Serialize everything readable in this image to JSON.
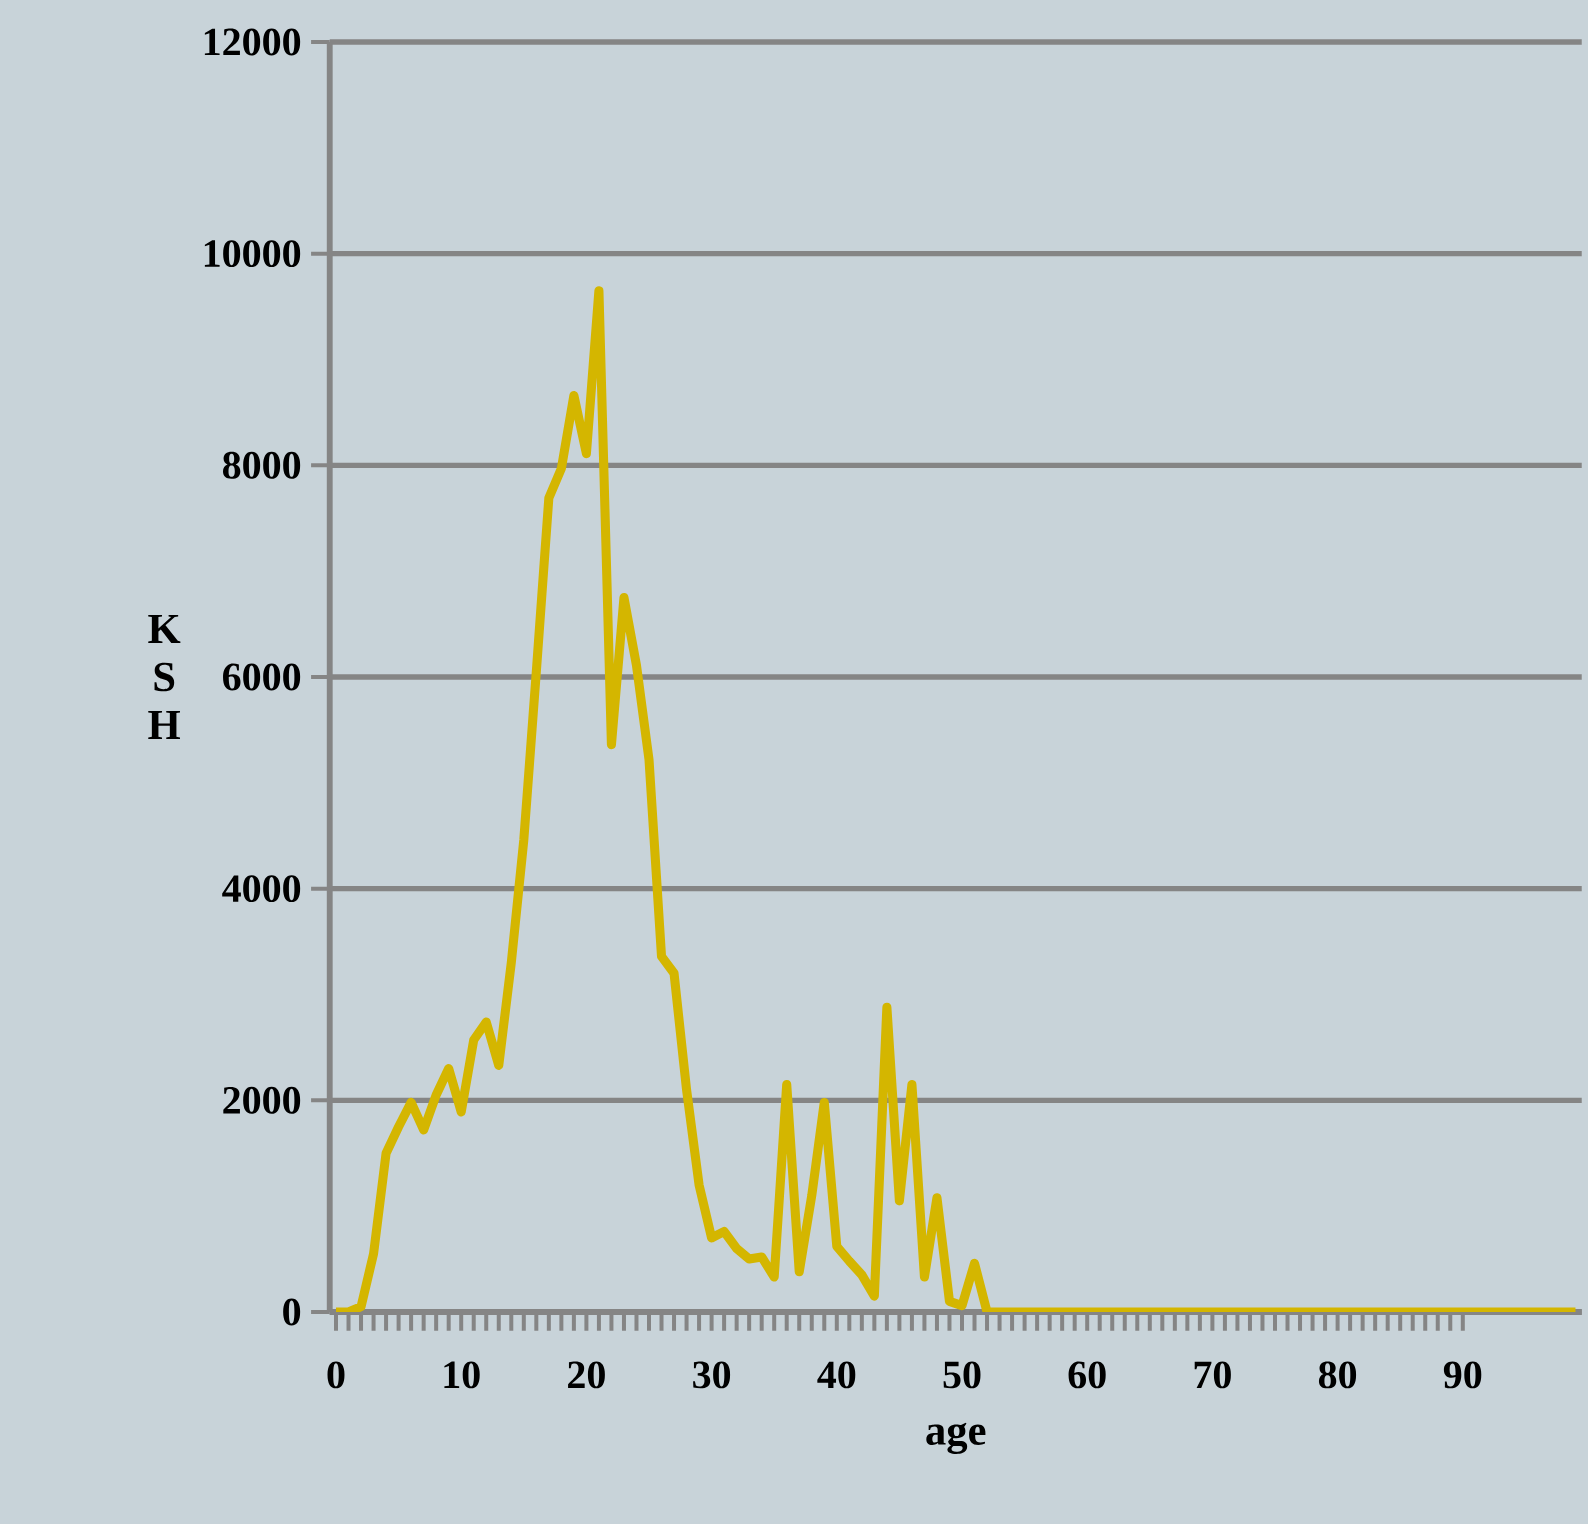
{
  "chart_data": {
    "type": "line",
    "xlabel": "age",
    "ylabel": "K S H",
    "x": [
      0,
      1,
      2,
      3,
      4,
      5,
      6,
      7,
      8,
      9,
      10,
      11,
      12,
      13,
      14,
      15,
      16,
      17,
      18,
      19,
      20,
      21,
      22,
      23,
      24,
      25,
      26,
      27,
      28,
      29,
      30,
      31,
      32,
      33,
      34,
      35,
      36,
      37,
      38,
      39,
      40,
      41,
      42,
      43,
      44,
      45,
      46,
      47,
      48,
      49,
      50,
      51,
      52,
      53,
      54,
      55,
      56,
      57,
      58,
      59,
      60,
      61,
      62,
      63,
      64,
      65,
      66,
      67,
      68,
      69,
      70,
      71,
      72,
      73,
      74,
      75,
      76,
      77,
      78,
      79,
      80,
      81,
      82,
      83,
      84,
      85,
      86,
      87,
      88,
      89,
      90,
      91,
      92,
      93,
      94,
      95,
      96,
      97,
      98,
      99
    ],
    "series": [
      {
        "color": "#d4b600",
        "values": [
          0,
          0,
          50,
          550,
          1500,
          1750,
          1980,
          1720,
          2050,
          2300,
          1890,
          2570,
          2740,
          2330,
          3300,
          4460,
          6050,
          7690,
          7970,
          8660,
          8110,
          9650,
          5360,
          6750,
          6110,
          5220,
          3360,
          3200,
          2100,
          1200,
          700,
          760,
          600,
          500,
          520,
          330,
          2150,
          380,
          1100,
          1980,
          620,
          480,
          350,
          150,
          2880,
          1050,
          2150,
          330,
          1080,
          100,
          60,
          460,
          0,
          0,
          0,
          0,
          0,
          0,
          0,
          0,
          0,
          0,
          0,
          0,
          0,
          0,
          0,
          0,
          0,
          0,
          0,
          0,
          0,
          0,
          0,
          0,
          0,
          0,
          0,
          0,
          0,
          0,
          0,
          0,
          0,
          0,
          0,
          0,
          0,
          0,
          0,
          0,
          0,
          0,
          0,
          0,
          0,
          0,
          0,
          0
        ]
      }
    ],
    "xlim": [
      -0.5,
      99.5
    ],
    "xticks": [
      0,
      10,
      20,
      30,
      40,
      50,
      60,
      70,
      80,
      90
    ],
    "ylim": [
      0,
      12000
    ],
    "yticks": [
      0,
      2000,
      4000,
      6000,
      8000,
      10000,
      12000
    ],
    "grid": "y",
    "marker": "none",
    "line_style": "solid"
  }
}
